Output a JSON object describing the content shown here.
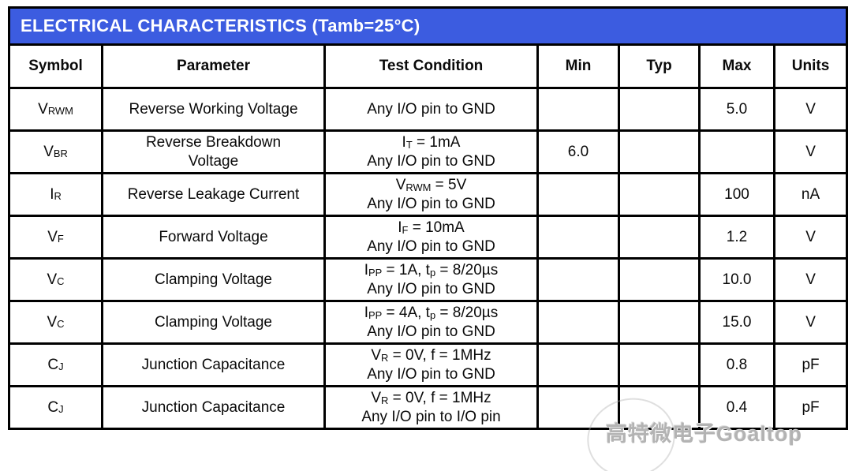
{
  "page": {
    "title": "ELECTRICAL CHARACTERISTICS (Tamb=25°C)",
    "accent_color": "#3c5ce0",
    "watermark": "高特微电子Goaltop"
  },
  "table": {
    "headers": {
      "symbol": "Symbol",
      "parameter": "Parameter",
      "condition": "Test Condition",
      "min": "Min",
      "typ": "Typ",
      "max": "Max",
      "units": "Units"
    },
    "rows": [
      {
        "symbol": "V~RWM~",
        "parameter": "Reverse Working Voltage",
        "condition": "Any I/O pin to GND",
        "min": "",
        "typ": "",
        "max": "5.0",
        "units": "V"
      },
      {
        "symbol": "V~BR~",
        "parameter": "Reverse Breakdown\nVoltage",
        "condition": "I~T~ = 1mA\nAny I/O pin to GND",
        "min": "6.0",
        "typ": "",
        "max": "",
        "units": "V"
      },
      {
        "symbol": "I~R~",
        "parameter": "Reverse Leakage Current",
        "condition": "V~RWM~ = 5V\nAny I/O pin to GND",
        "min": "",
        "typ": "",
        "max": "100",
        "units": "nA"
      },
      {
        "symbol": "V~F~",
        "parameter": "Forward Voltage",
        "condition": "I~F~ = 10mA\nAny I/O pin to GND",
        "min": "",
        "typ": "",
        "max": "1.2",
        "units": "V"
      },
      {
        "symbol": "V~C~",
        "parameter": "Clamping Voltage",
        "condition": "I~PP~ = 1A, t~p~ = 8/20µs\nAny I/O pin to GND",
        "min": "",
        "typ": "",
        "max": "10.0",
        "units": "V"
      },
      {
        "symbol": "V~C~",
        "parameter": "Clamping Voltage",
        "condition": "I~PP~ = 4A, t~p~ = 8/20µs\nAny I/O pin to GND",
        "min": "",
        "typ": "",
        "max": "15.0",
        "units": "V"
      },
      {
        "symbol": "C~J~",
        "parameter": "Junction Capacitance",
        "condition": "V~R~ = 0V, f = 1MHz\nAny I/O pin to GND",
        "min": "",
        "typ": "",
        "max": "0.8",
        "units": "pF"
      },
      {
        "symbol": "C~J~",
        "parameter": "Junction Capacitance",
        "condition": "V~R~ = 0V, f = 1MHz\nAny I/O pin to I/O pin",
        "min": "",
        "typ": "",
        "max": "0.4",
        "units": "pF"
      }
    ]
  }
}
